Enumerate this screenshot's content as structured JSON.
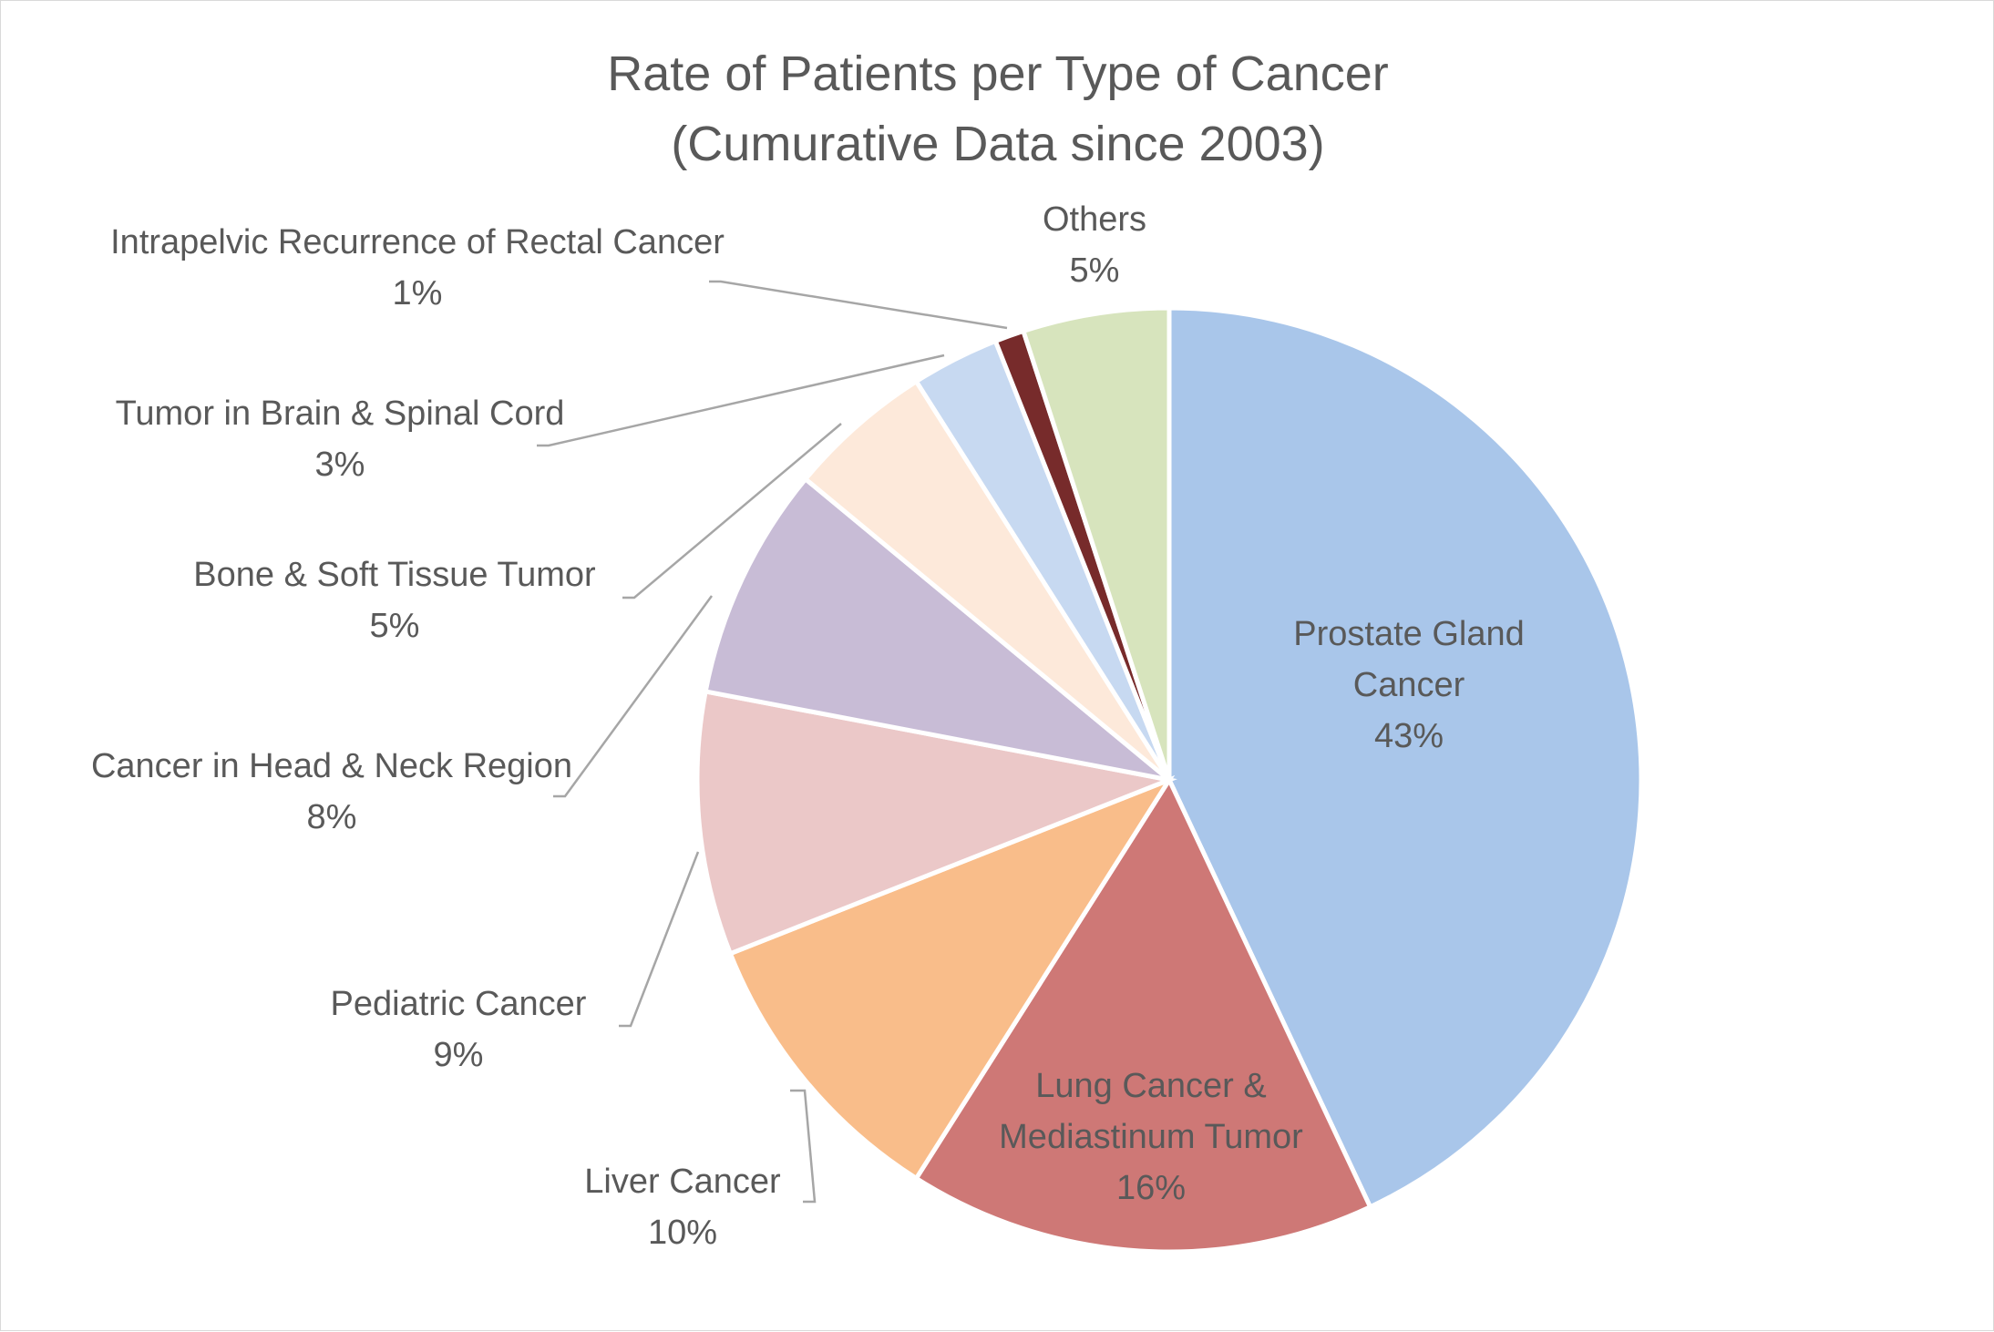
{
  "chart_data": {
    "type": "pie",
    "title": [
      "Rate of Patients per Type of Cancer",
      "(Cumurative Data since 2003)"
    ],
    "slices": [
      {
        "name": "Prostate Gland Cancer",
        "label_lines": [
          "Prostate Gland",
          "Cancer"
        ],
        "value": 43,
        "value_label": "43%",
        "color": "#a9c6ea",
        "label_position": "inside"
      },
      {
        "name": "Lung Cancer & Mediastinum Tumor",
        "label_lines": [
          "Lung Cancer &",
          "Mediastinum Tumor"
        ],
        "value": 16,
        "value_label": "16%",
        "color": "#ce7876",
        "label_position": "inside"
      },
      {
        "name": "Liver Cancer",
        "label_lines": [
          "Liver Cancer"
        ],
        "value": 10,
        "value_label": "10%",
        "color": "#f9bd8a",
        "label_position": "outside"
      },
      {
        "name": "Pediatric Cancer",
        "label_lines": [
          "Pediatric Cancer"
        ],
        "value": 9,
        "value_label": "9%",
        "color": "#ebc8c8",
        "label_position": "outside"
      },
      {
        "name": "Cancer in Head & Neck Region",
        "label_lines": [
          "Cancer in Head & Neck Region"
        ],
        "value": 8,
        "value_label": "8%",
        "color": "#c8bcd6",
        "label_position": "outside"
      },
      {
        "name": "Bone & Soft Tissue Tumor",
        "label_lines": [
          "Bone & Soft Tissue Tumor"
        ],
        "value": 5,
        "value_label": "5%",
        "color": "#fde9da",
        "label_position": "outside"
      },
      {
        "name": "Tumor in Brain & Spinal Cord",
        "label_lines": [
          "Tumor in Brain & Spinal Cord"
        ],
        "value": 3,
        "value_label": "3%",
        "color": "#c7d9f1",
        "label_position": "outside"
      },
      {
        "name": "Intrapelvic Recurrence of Rectal Cancer",
        "label_lines": [
          "Intrapelvic Recurrence of Rectal Cancer"
        ],
        "value": 1,
        "value_label": "1%",
        "color": "#772b2b",
        "label_position": "outside"
      },
      {
        "name": "Others",
        "label_lines": [
          "Others"
        ],
        "value": 5,
        "value_label": "5%",
        "color": "#d7e4bd",
        "label_position": "outside"
      }
    ]
  }
}
